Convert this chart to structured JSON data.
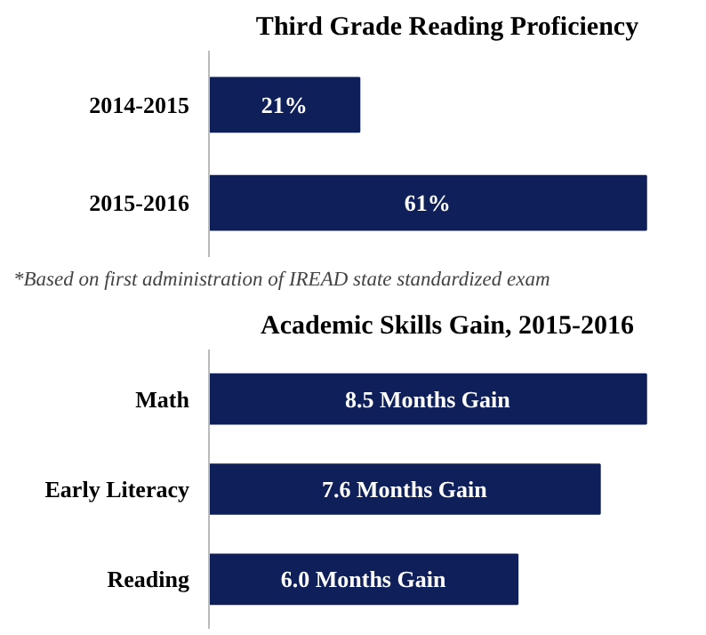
{
  "chart_data": [
    {
      "type": "bar",
      "orientation": "horizontal",
      "tick_labels": "y",
      "title": "Third Grade Reading Proficiency",
      "categories": [
        "2014-2015",
        "2015-2016"
      ],
      "values": [
        21,
        61
      ],
      "value_labels": [
        "21%",
        "61%"
      ],
      "color": "#0f1f5a",
      "grid": false,
      "annotations": [
        "*Based on first administration of IREAD state standardized exam"
      ]
    },
    {
      "type": "bar",
      "orientation": "horizontal",
      "tick_labels": "y",
      "title": "Academic Skills Gain, 2015-2016",
      "categories": [
        "Math",
        "Early Literacy",
        "Reading"
      ],
      "values": [
        8.5,
        7.6,
        6.0
      ],
      "value_labels": [
        "8.5 Months Gain",
        "7.6 Months Gain",
        "6.0 Months Gain"
      ],
      "color": "#0f1f5a",
      "grid": false
    }
  ]
}
